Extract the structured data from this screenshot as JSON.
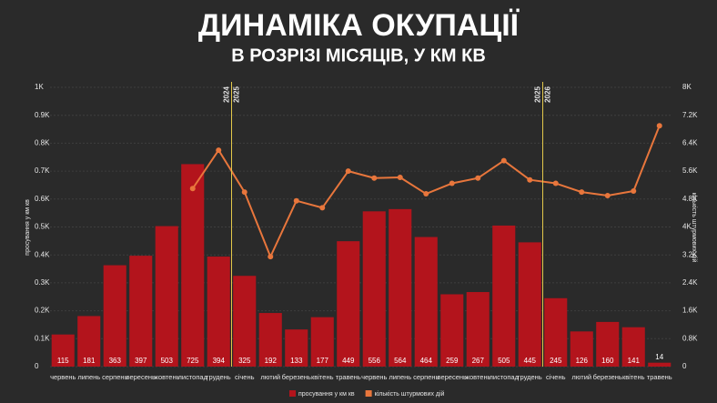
{
  "chart_data": {
    "type": "bar",
    "title": "ДИНАМІКА ОКУПАЦІЇ",
    "subtitle": "В РОЗРІЗІ МІСЯЦІВ, У КМ КВ",
    "y_label": "просування у км кв",
    "y2_label": "кількість штурмових дій",
    "categories": [
      "червень",
      "липень",
      "серпень",
      "вересень",
      "жовтень",
      "листопад",
      "грудень",
      "січень",
      "лютий",
      "березень",
      "квітень",
      "травень",
      "червень",
      "липень",
      "серпень",
      "вересень",
      "жовтень",
      "листопад",
      "грудень",
      "січень",
      "лютий",
      "березень",
      "квітень",
      "травень"
    ],
    "series": [
      {
        "name": "просування у км кв",
        "type": "bar",
        "color": "#b3141c",
        "values": [
          115,
          181,
          363,
          397,
          503,
          725,
          394,
          325,
          192,
          133,
          177,
          449,
          556,
          564,
          464,
          259,
          267,
          505,
          445,
          245,
          126,
          160,
          141,
          14
        ]
      },
      {
        "name": "кількість штурмових дій",
        "type": "line",
        "axis": "y2",
        "color": "#e8763c",
        "values": [
          null,
          null,
          null,
          null,
          null,
          5100,
          6200,
          5000,
          3150,
          4750,
          4550,
          5600,
          5400,
          5420,
          4950,
          5250,
          5400,
          5900,
          5350,
          5250,
          5000,
          4900,
          5030,
          6900
        ]
      }
    ],
    "year_dividers": [
      {
        "left": "2024",
        "right": "2025"
      },
      {
        "left": "2025",
        "right": "2026"
      }
    ],
    "ylim": [
      0,
      1000
    ],
    "yticks": [
      0,
      {
        "value": 100,
        "label": "0.1K"
      },
      {
        "value": 200,
        "label": "0.2K"
      },
      {
        "value": 300,
        "label": "0.3K"
      },
      {
        "value": 400,
        "label": "0.4K"
      },
      {
        "value": 500,
        "label": "0.5K"
      },
      {
        "value": 600,
        "label": "0.6K"
      },
      {
        "value": 700,
        "label": "0.7K"
      },
      {
        "value": 800,
        "label": "0.8K"
      },
      {
        "value": 900,
        "label": "0.9K"
      },
      {
        "value": 1000,
        "label": "1K"
      }
    ],
    "y2lim": [
      0,
      8000
    ],
    "y2ticks": [
      0,
      {
        "value": 800,
        "label": "0.8K"
      },
      {
        "value": 1600,
        "label": "1.6K"
      },
      {
        "value": 2400,
        "label": "2.4K"
      },
      {
        "value": 3200,
        "label": "3.2K"
      },
      {
        "value": 4000,
        "label": "4K"
      },
      {
        "value": 4800,
        "label": "4.8K"
      },
      {
        "value": 5600,
        "label": "5.6K"
      },
      {
        "value": 6400,
        "label": "6.4K"
      },
      {
        "value": 7200,
        "label": "7.2K"
      },
      {
        "value": 8000,
        "label": "8K"
      }
    ],
    "grid": true
  }
}
